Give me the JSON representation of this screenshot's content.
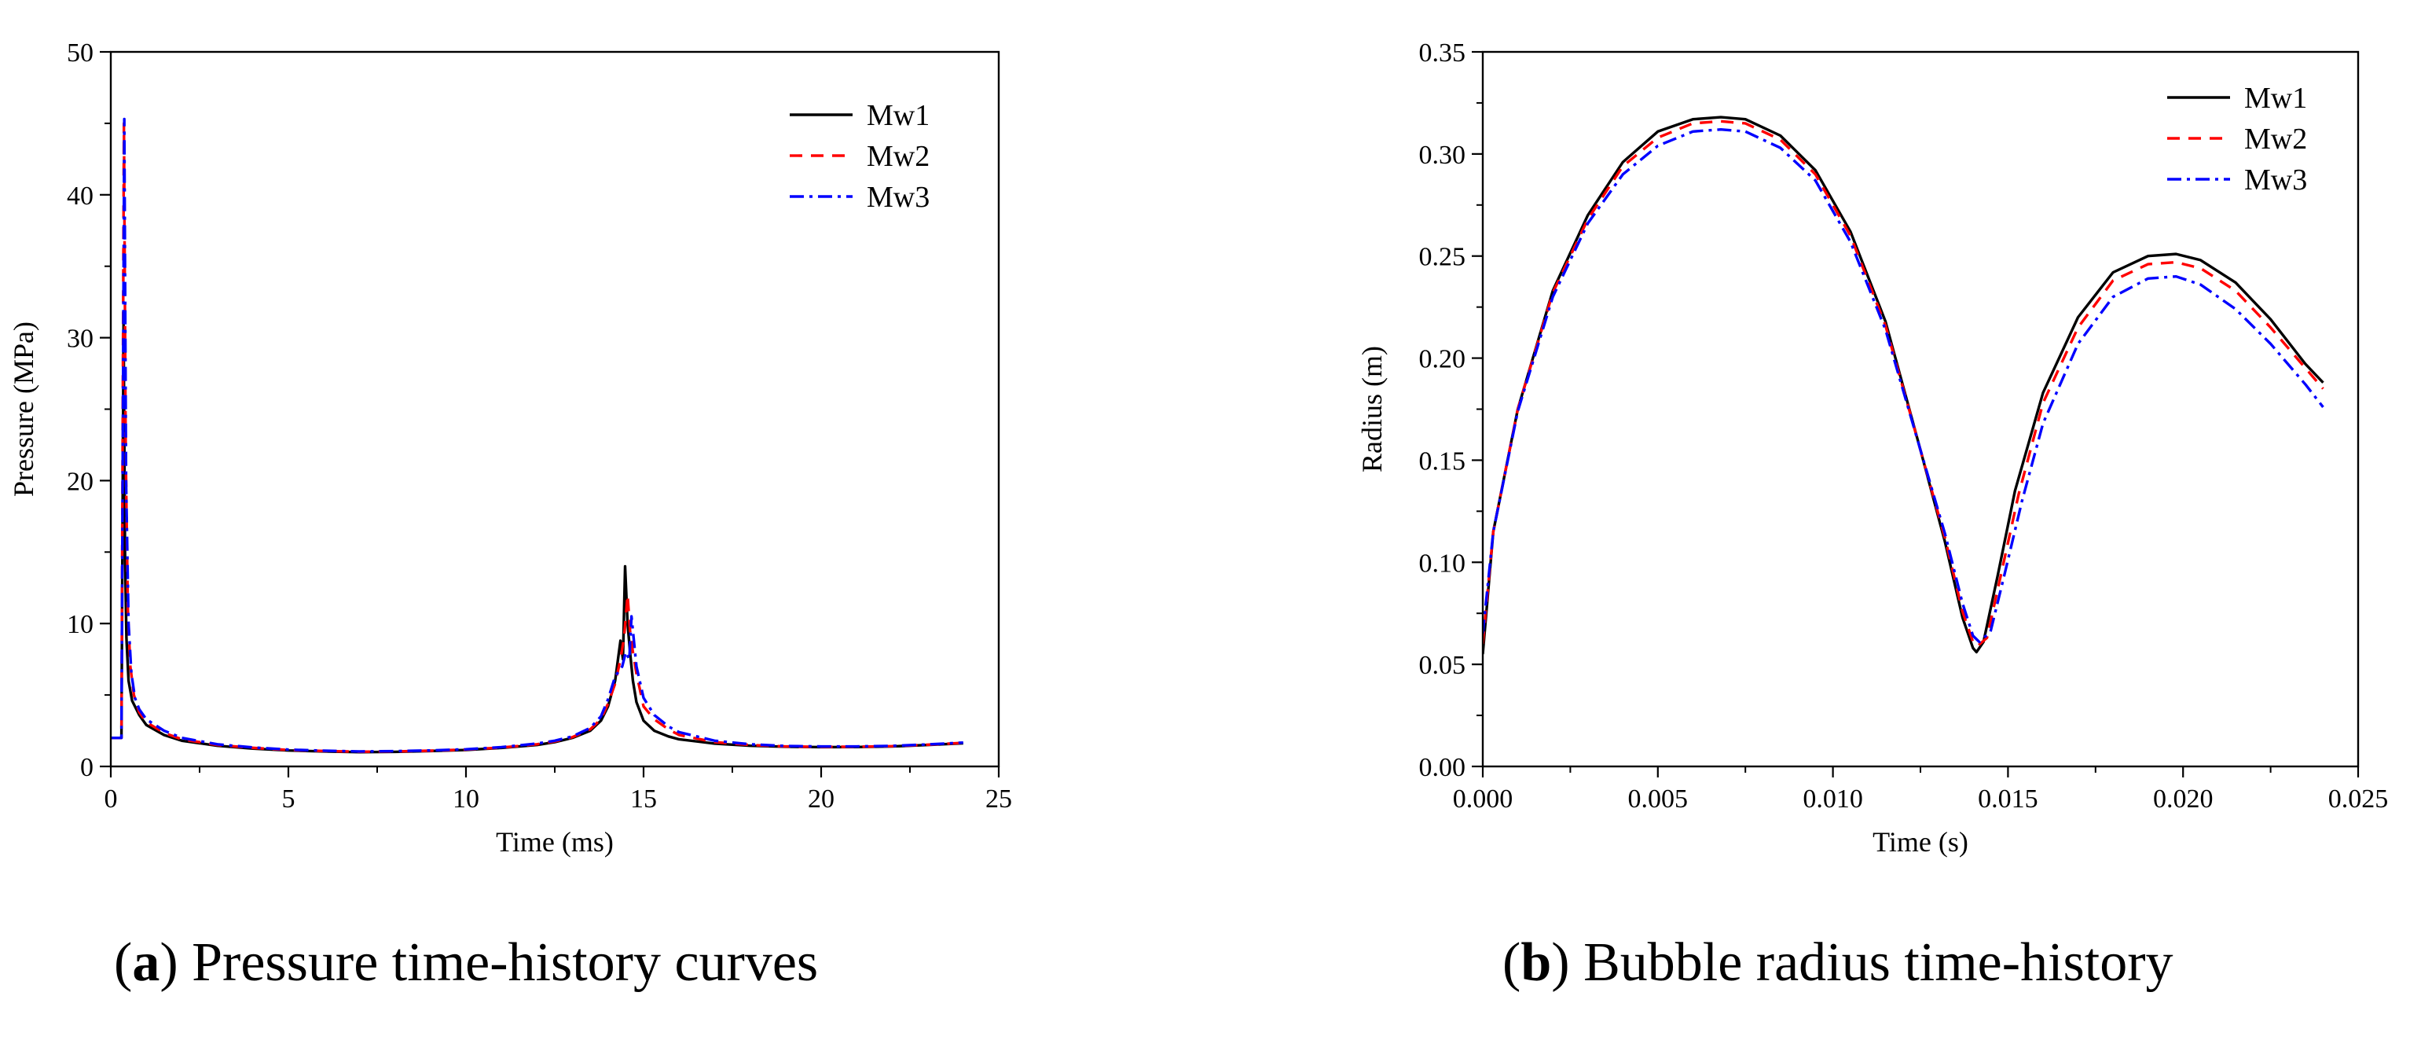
{
  "chart_data": [
    {
      "type": "line",
      "panel": "a",
      "caption_letter": "a",
      "caption_text": " Pressure time-history curves",
      "xlabel": "Time (ms)",
      "ylabel": "Pressure (MPa)",
      "xlim": [
        0,
        25
      ],
      "ylim": [
        0,
        50
      ],
      "xticks": [
        0,
        5,
        10,
        15,
        20,
        25
      ],
      "yticks": [
        0,
        10,
        20,
        30,
        40,
        50
      ],
      "xtick_labels": [
        "0",
        "5",
        "10",
        "15",
        "20",
        "25"
      ],
      "ytick_labels": [
        "0",
        "10",
        "20",
        "30",
        "40",
        "50"
      ],
      "legend_position": "top-right",
      "series": [
        {
          "name": "Mw1",
          "color": "#000000",
          "dash": "solid",
          "x": [
            0,
            0.3,
            0.36,
            0.4,
            0.44,
            0.5,
            0.6,
            0.8,
            1.0,
            1.5,
            2,
            3,
            4,
            5,
            6,
            7,
            8,
            9,
            10,
            11,
            12,
            12.5,
            13,
            13.5,
            13.8,
            14.0,
            14.2,
            14.35,
            14.42,
            14.48,
            14.55,
            14.62,
            14.7,
            14.8,
            15.0,
            15.3,
            15.7,
            16,
            17,
            18,
            19,
            20,
            21,
            22,
            23,
            24
          ],
          "y": [
            2.0,
            2.0,
            31.0,
            15.0,
            9.0,
            6.0,
            4.6,
            3.6,
            2.9,
            2.2,
            1.8,
            1.45,
            1.25,
            1.12,
            1.05,
            1.0,
            1.02,
            1.08,
            1.15,
            1.3,
            1.5,
            1.7,
            2.0,
            2.5,
            3.2,
            4.2,
            6.0,
            8.8,
            7.5,
            14.0,
            10.0,
            8.0,
            6.0,
            4.5,
            3.2,
            2.5,
            2.1,
            1.9,
            1.6,
            1.45,
            1.38,
            1.35,
            1.36,
            1.4,
            1.5,
            1.62
          ]
        },
        {
          "name": "Mw2",
          "color": "#ff0000",
          "dash": "16,11",
          "x": [
            0,
            0.3,
            0.37,
            0.42,
            0.48,
            0.55,
            0.65,
            0.8,
            1.0,
            1.5,
            2,
            3,
            4,
            5,
            6,
            7,
            8,
            9,
            10,
            11,
            12,
            12.5,
            13,
            13.5,
            13.8,
            14.0,
            14.2,
            14.35,
            14.45,
            14.55,
            14.62,
            14.7,
            14.8,
            15.0,
            15.3,
            15.7,
            16,
            17,
            18,
            19,
            20,
            21,
            22,
            23,
            24
          ],
          "y": [
            2.0,
            2.0,
            45.0,
            22.0,
            11.0,
            7.0,
            5.0,
            3.8,
            3.1,
            2.35,
            1.9,
            1.5,
            1.3,
            1.15,
            1.08,
            1.03,
            1.05,
            1.1,
            1.18,
            1.32,
            1.55,
            1.75,
            2.05,
            2.6,
            3.3,
            4.4,
            5.8,
            7.5,
            9.0,
            12.0,
            9.5,
            8.0,
            6.5,
            4.2,
            3.3,
            2.6,
            2.2,
            1.7,
            1.5,
            1.4,
            1.37,
            1.38,
            1.42,
            1.52,
            1.65
          ]
        },
        {
          "name": "Mw3",
          "color": "#0000ff",
          "dash": "18,7,4,7",
          "x": [
            0,
            0.3,
            0.38,
            0.43,
            0.5,
            0.58,
            0.68,
            0.8,
            1.0,
            1.5,
            2,
            3,
            4,
            5,
            6,
            7,
            8,
            9,
            10,
            11,
            12,
            12.5,
            13,
            13.5,
            13.8,
            14.0,
            14.2,
            14.4,
            14.5,
            14.6,
            14.66,
            14.72,
            14.8,
            15.0,
            15.3,
            15.7,
            16,
            17,
            18,
            19,
            20,
            21,
            22,
            23,
            24
          ],
          "y": [
            2.0,
            2.0,
            45.3,
            20.0,
            10.0,
            6.5,
            4.8,
            4.0,
            3.3,
            2.5,
            2.0,
            1.55,
            1.33,
            1.18,
            1.1,
            1.05,
            1.07,
            1.12,
            1.2,
            1.35,
            1.6,
            1.8,
            2.1,
            2.7,
            3.5,
            4.7,
            6.3,
            7.0,
            8.0,
            7.5,
            10.5,
            9.0,
            7.0,
            4.8,
            3.6,
            2.8,
            2.4,
            1.8,
            1.55,
            1.43,
            1.4,
            1.4,
            1.44,
            1.54,
            1.67
          ]
        }
      ]
    },
    {
      "type": "line",
      "panel": "b",
      "caption_letter": "b",
      "caption_text": " Bubble radius time-history",
      "xlabel": "Time (s)",
      "ylabel": "Radius (m)",
      "xlim": [
        0,
        0.025
      ],
      "ylim": [
        0,
        0.35
      ],
      "xticks": [
        0,
        0.005,
        0.01,
        0.015,
        0.02,
        0.025
      ],
      "yticks": [
        0,
        0.05,
        0.1,
        0.15,
        0.2,
        0.25,
        0.3,
        0.35
      ],
      "xtick_labels": [
        "0.000",
        "0.005",
        "0.010",
        "0.015",
        "0.020",
        "0.025"
      ],
      "ytick_labels": [
        "0.00",
        "0.05",
        "0.10",
        "0.15",
        "0.20",
        "0.25",
        "0.30",
        "0.35"
      ],
      "legend_position": "top-right",
      "series": [
        {
          "name": "Mw1",
          "color": "#000000",
          "dash": "solid",
          "x": [
            0,
            0.0003,
            0.001,
            0.002,
            0.003,
            0.004,
            0.005,
            0.006,
            0.0068,
            0.0075,
            0.0085,
            0.0095,
            0.0105,
            0.0115,
            0.0125,
            0.0132,
            0.0137,
            0.014,
            0.0141,
            0.0143,
            0.0147,
            0.0152,
            0.016,
            0.017,
            0.018,
            0.019,
            0.0198,
            0.0205,
            0.0215,
            0.0225,
            0.0235,
            0.024
          ],
          "y": [
            0.055,
            0.115,
            0.175,
            0.233,
            0.27,
            0.296,
            0.311,
            0.317,
            0.318,
            0.317,
            0.309,
            0.292,
            0.262,
            0.218,
            0.155,
            0.11,
            0.073,
            0.058,
            0.056,
            0.061,
            0.093,
            0.135,
            0.183,
            0.22,
            0.242,
            0.25,
            0.251,
            0.248,
            0.237,
            0.219,
            0.197,
            0.188
          ]
        },
        {
          "name": "Mw2",
          "color": "#ff0000",
          "dash": "16,11",
          "x": [
            0,
            0.0003,
            0.001,
            0.002,
            0.003,
            0.004,
            0.005,
            0.006,
            0.0068,
            0.0075,
            0.0085,
            0.0095,
            0.0105,
            0.0115,
            0.0125,
            0.0132,
            0.0137,
            0.014,
            0.01413,
            0.0144,
            0.0148,
            0.0153,
            0.016,
            0.017,
            0.018,
            0.019,
            0.0198,
            0.0205,
            0.0215,
            0.0225,
            0.0235,
            0.024
          ],
          "y": [
            0.06,
            0.115,
            0.175,
            0.232,
            0.268,
            0.294,
            0.308,
            0.315,
            0.316,
            0.315,
            0.307,
            0.29,
            0.26,
            0.216,
            0.155,
            0.112,
            0.076,
            0.061,
            0.059,
            0.063,
            0.094,
            0.133,
            0.178,
            0.215,
            0.238,
            0.246,
            0.247,
            0.244,
            0.233,
            0.215,
            0.195,
            0.185
          ]
        },
        {
          "name": "Mw3",
          "color": "#0000ff",
          "dash": "18,7,4,7",
          "x": [
            0,
            0.0003,
            0.001,
            0.002,
            0.003,
            0.004,
            0.005,
            0.006,
            0.0068,
            0.0075,
            0.0085,
            0.0095,
            0.0105,
            0.0115,
            0.0125,
            0.0132,
            0.0137,
            0.014,
            0.01418,
            0.0145,
            0.0149,
            0.0154,
            0.016,
            0.017,
            0.018,
            0.019,
            0.0198,
            0.0205,
            0.0215,
            0.0225,
            0.0235,
            0.024
          ],
          "y": [
            0.065,
            0.115,
            0.174,
            0.23,
            0.266,
            0.29,
            0.304,
            0.311,
            0.312,
            0.311,
            0.303,
            0.287,
            0.257,
            0.214,
            0.155,
            0.114,
            0.08,
            0.064,
            0.061,
            0.066,
            0.094,
            0.13,
            0.168,
            0.207,
            0.23,
            0.239,
            0.24,
            0.236,
            0.224,
            0.207,
            0.187,
            0.176
          ]
        }
      ]
    }
  ]
}
